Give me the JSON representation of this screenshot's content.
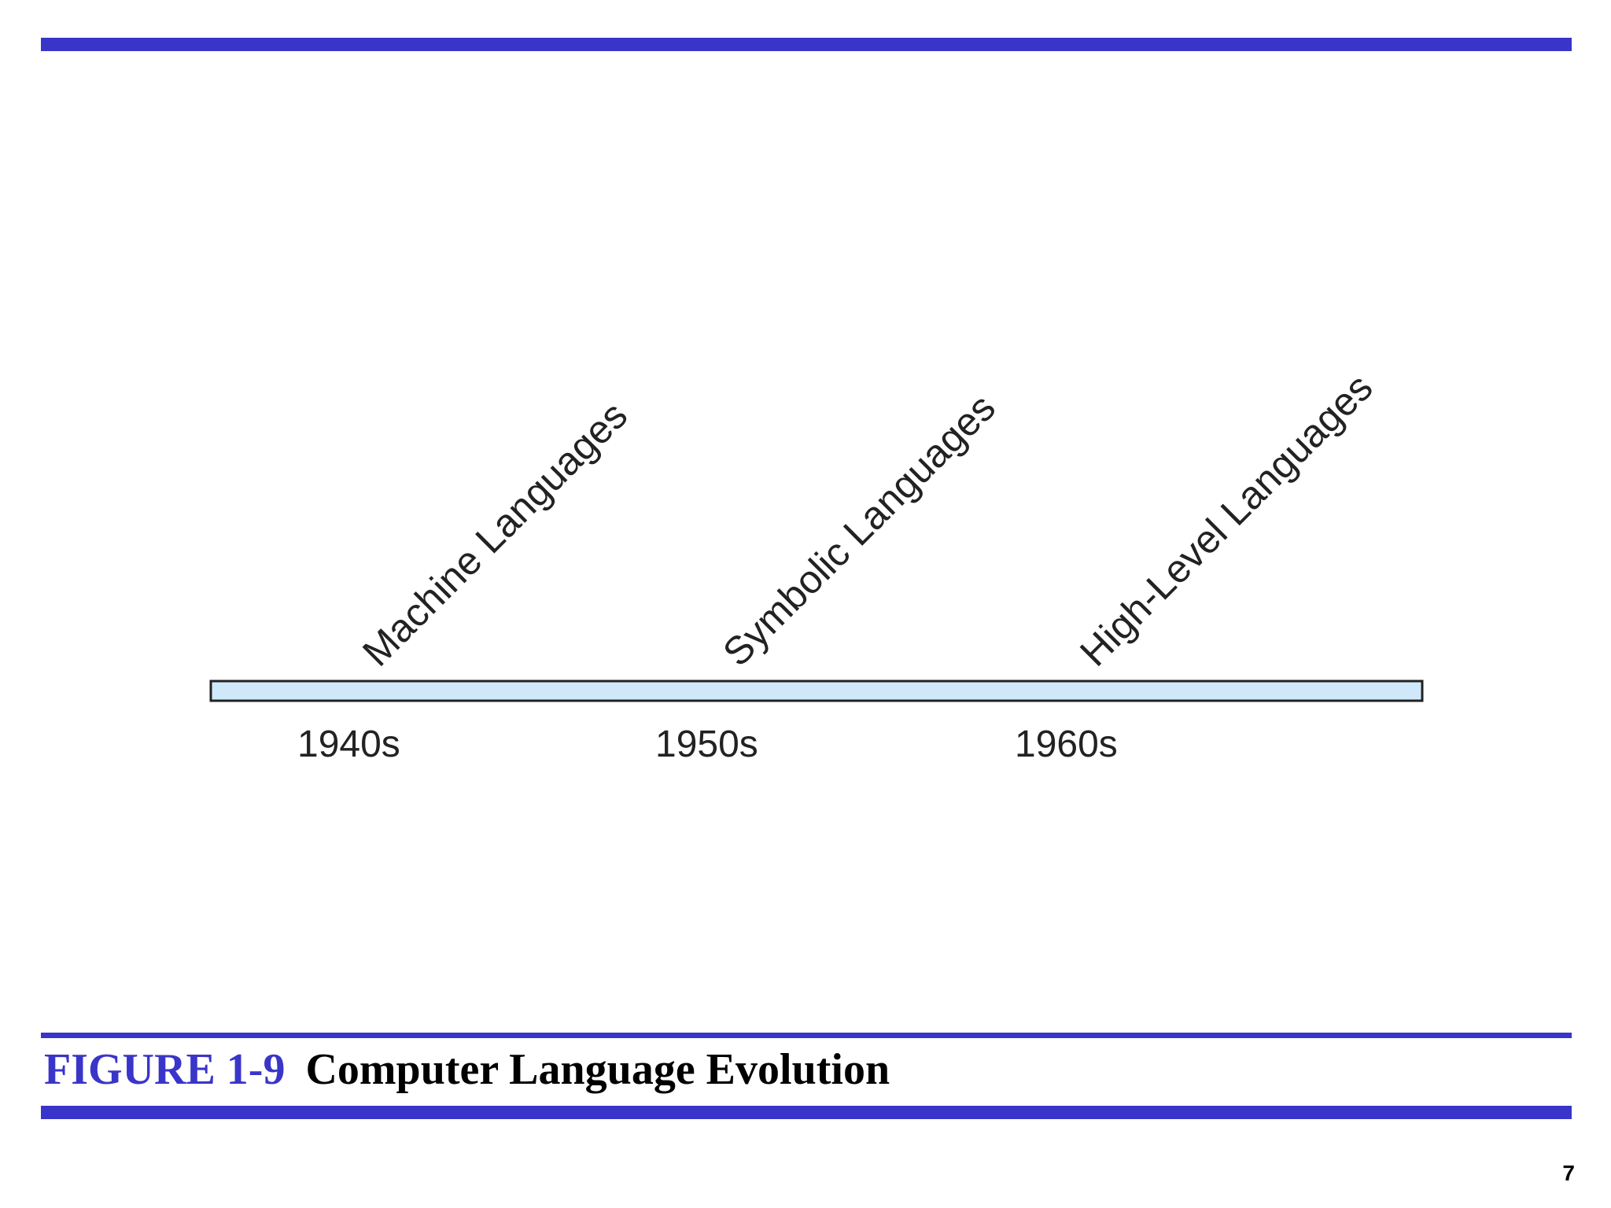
{
  "diagram": {
    "eras": [
      {
        "decade": "1940s",
        "language": "Machine Languages"
      },
      {
        "decade": "1950s",
        "language": "Symbolic Languages"
      },
      {
        "decade": "1960s",
        "language": "High-Level Languages"
      }
    ],
    "colors": {
      "bar_fill": "#cfe9fa",
      "bar_stroke": "#222222",
      "text": "#222222"
    }
  },
  "caption": {
    "figure_number": "FIGURE 1-9",
    "title": "Computer Language Evolution"
  },
  "page": {
    "number": "7"
  },
  "colors": {
    "accent": "#3a35c9"
  }
}
